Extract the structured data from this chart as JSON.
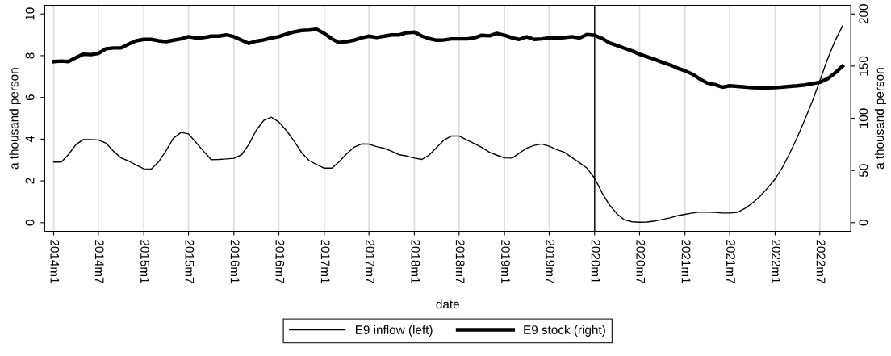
{
  "chart_data": {
    "type": "line",
    "xlabel": "date",
    "ylabel": "a thousand person",
    "y2label": "a thousand person",
    "x": [
      "2014-01",
      "2014-02",
      "2014-03",
      "2014-04",
      "2014-05",
      "2014-06",
      "2014-07",
      "2014-08",
      "2014-09",
      "2014-10",
      "2014-11",
      "2014-12",
      "2015-01",
      "2015-02",
      "2015-03",
      "2015-04",
      "2015-05",
      "2015-06",
      "2015-07",
      "2015-08",
      "2015-09",
      "2015-10",
      "2015-11",
      "2015-12",
      "2016-01",
      "2016-02",
      "2016-03",
      "2016-04",
      "2016-05",
      "2016-06",
      "2016-07",
      "2016-08",
      "2016-09",
      "2016-10",
      "2016-11",
      "2016-12",
      "2017-01",
      "2017-02",
      "2017-03",
      "2017-04",
      "2017-05",
      "2017-06",
      "2017-07",
      "2017-08",
      "2017-09",
      "2017-10",
      "2017-11",
      "2017-12",
      "2018-01",
      "2018-02",
      "2018-03",
      "2018-04",
      "2018-05",
      "2018-06",
      "2018-07",
      "2018-08",
      "2018-09",
      "2018-10",
      "2018-11",
      "2018-12",
      "2019-01",
      "2019-02",
      "2019-03",
      "2019-04",
      "2019-05",
      "2019-06",
      "2019-07",
      "2019-08",
      "2019-09",
      "2019-10",
      "2019-11",
      "2019-12",
      "2020-01",
      "2020-02",
      "2020-03",
      "2020-04",
      "2020-05",
      "2020-06",
      "2020-07",
      "2020-08",
      "2020-09",
      "2020-10",
      "2020-11",
      "2020-12",
      "2021-01",
      "2021-02",
      "2021-03",
      "2021-04",
      "2021-05",
      "2021-06",
      "2021-07",
      "2021-08",
      "2021-09",
      "2021-10",
      "2021-11",
      "2021-12",
      "2022-01",
      "2022-02",
      "2022-03",
      "2022-04",
      "2022-05",
      "2022-06",
      "2022-07",
      "2022-08",
      "2022-09",
      "2022-10"
    ],
    "series": [
      {
        "name": "E9 inflow (left)",
        "color": "#000000",
        "axis": "y",
        "values": [
          2.9,
          2.9,
          3.25,
          3.74,
          3.98,
          3.98,
          3.96,
          3.81,
          3.41,
          3.1,
          2.95,
          2.76,
          2.58,
          2.57,
          2.9,
          3.44,
          4.05,
          4.32,
          4.25,
          3.83,
          3.41,
          3.02,
          3.03,
          3.05,
          3.08,
          3.25,
          3.74,
          4.44,
          4.9,
          5.05,
          4.82,
          4.41,
          3.9,
          3.36,
          2.97,
          2.78,
          2.61,
          2.61,
          2.9,
          3.29,
          3.61,
          3.77,
          3.76,
          3.64,
          3.56,
          3.42,
          3.25,
          3.19,
          3.09,
          3.03,
          3.23,
          3.6,
          3.96,
          4.15,
          4.15,
          3.96,
          3.79,
          3.6,
          3.37,
          3.23,
          3.1,
          3.09,
          3.32,
          3.57,
          3.7,
          3.77,
          3.66,
          3.5,
          3.37,
          3.12,
          2.87,
          2.61,
          2.13,
          1.41,
          0.85,
          0.42,
          0.13,
          0.04,
          0.02,
          0.03,
          0.08,
          0.15,
          0.23,
          0.33,
          0.4,
          0.46,
          0.51,
          0.5,
          0.49,
          0.46,
          0.46,
          0.49,
          0.68,
          0.94,
          1.26,
          1.65,
          2.09,
          2.67,
          3.32,
          4.09,
          4.92,
          5.82,
          6.79,
          7.82,
          8.72,
          9.42
        ]
      },
      {
        "name": "E9 stock (right)",
        "color": "#000000",
        "axis": "y2",
        "values": [
          154.3,
          154.8,
          154.3,
          158.1,
          161.4,
          161.0,
          162.2,
          166.6,
          167.4,
          167.4,
          171.2,
          174.3,
          175.6,
          175.6,
          174.3,
          173.5,
          174.8,
          176.1,
          178.2,
          177.0,
          177.4,
          178.7,
          178.7,
          179.9,
          178.2,
          174.8,
          171.8,
          173.9,
          175.1,
          177.0,
          178.2,
          180.7,
          182.8,
          184.1,
          184.5,
          185.3,
          181.3,
          176.1,
          172.5,
          173.4,
          174.8,
          177.0,
          178.7,
          177.4,
          178.7,
          179.9,
          179.9,
          182.0,
          182.5,
          178.7,
          176.4,
          174.8,
          175.1,
          176.1,
          176.1,
          176.1,
          177.0,
          179.5,
          179.0,
          181.3,
          179.5,
          177.0,
          175.6,
          178.0,
          175.6,
          176.1,
          177.0,
          177.0,
          177.4,
          178.2,
          177.0,
          180.2,
          179.5,
          176.4,
          172.2,
          169.7,
          167.1,
          164.5,
          161.4,
          158.9,
          156.3,
          153.7,
          151.2,
          148.1,
          145.5,
          142.2,
          137.8,
          133.7,
          132.4,
          129.8,
          131.1,
          130.6,
          130.0,
          129.3,
          129.1,
          129.1,
          129.3,
          130.0,
          130.6,
          131.1,
          131.9,
          133.2,
          134.5,
          137.8,
          143.5,
          149.9
        ]
      }
    ],
    "xlim": [
      "2013-11-25",
      "2022-11-04"
    ],
    "xticks": [
      {
        "value": "2014-01",
        "label": "2014m1"
      },
      {
        "value": "2014-07",
        "label": "2014m7"
      },
      {
        "value": "2015-01",
        "label": "2015m1"
      },
      {
        "value": "2015-07",
        "label": "2015m7"
      },
      {
        "value": "2016-01",
        "label": "2016m1"
      },
      {
        "value": "2016-07",
        "label": "2016m7"
      },
      {
        "value": "2017-01",
        "label": "2017m1"
      },
      {
        "value": "2017-07",
        "label": "2017m7"
      },
      {
        "value": "2018-01",
        "label": "2018m1"
      },
      {
        "value": "2018-07",
        "label": "2018m7"
      },
      {
        "value": "2019-01",
        "label": "2019m1"
      },
      {
        "value": "2019-07",
        "label": "2019m7"
      },
      {
        "value": "2020-01",
        "label": "2020m1"
      },
      {
        "value": "2020-07",
        "label": "2020m7"
      },
      {
        "value": "2021-01",
        "label": "2021m1"
      },
      {
        "value": "2021-07",
        "label": "2021m7"
      },
      {
        "value": "2022-01",
        "label": "2022m1"
      },
      {
        "value": "2022-07",
        "label": "2022m7"
      }
    ],
    "ylim": [
      -0.42,
      10.41
    ],
    "yticks": [
      0,
      2,
      4,
      6,
      8,
      10
    ],
    "y2lim": [
      -8.4,
      208.2
    ],
    "y2ticks": [
      0,
      50,
      100,
      150,
      200
    ],
    "ref_lines": [
      {
        "axis": "x",
        "value": "2020-01",
        "color": "#000000"
      }
    ],
    "grid": "x",
    "legend": "bottom"
  }
}
